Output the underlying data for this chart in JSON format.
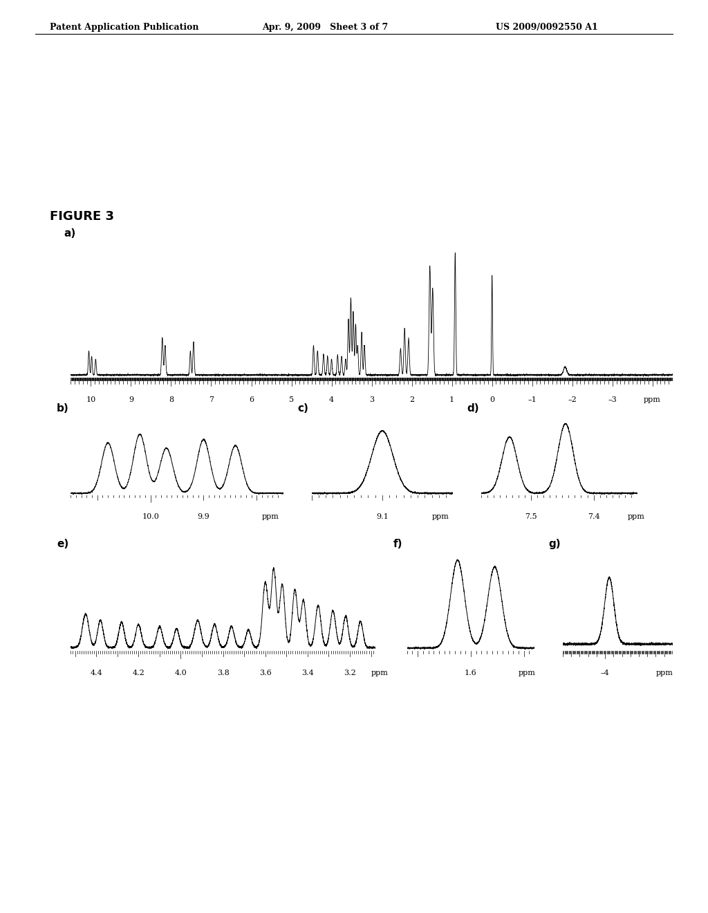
{
  "header_left": "Patent Application Publication",
  "header_mid": "Apr. 9, 2009   Sheet 3 of 7",
  "header_right": "US 2009/0092550 A1",
  "figure_label": "FIGURE 3",
  "background_color": "#ffffff",
  "line_color": "#000000"
}
